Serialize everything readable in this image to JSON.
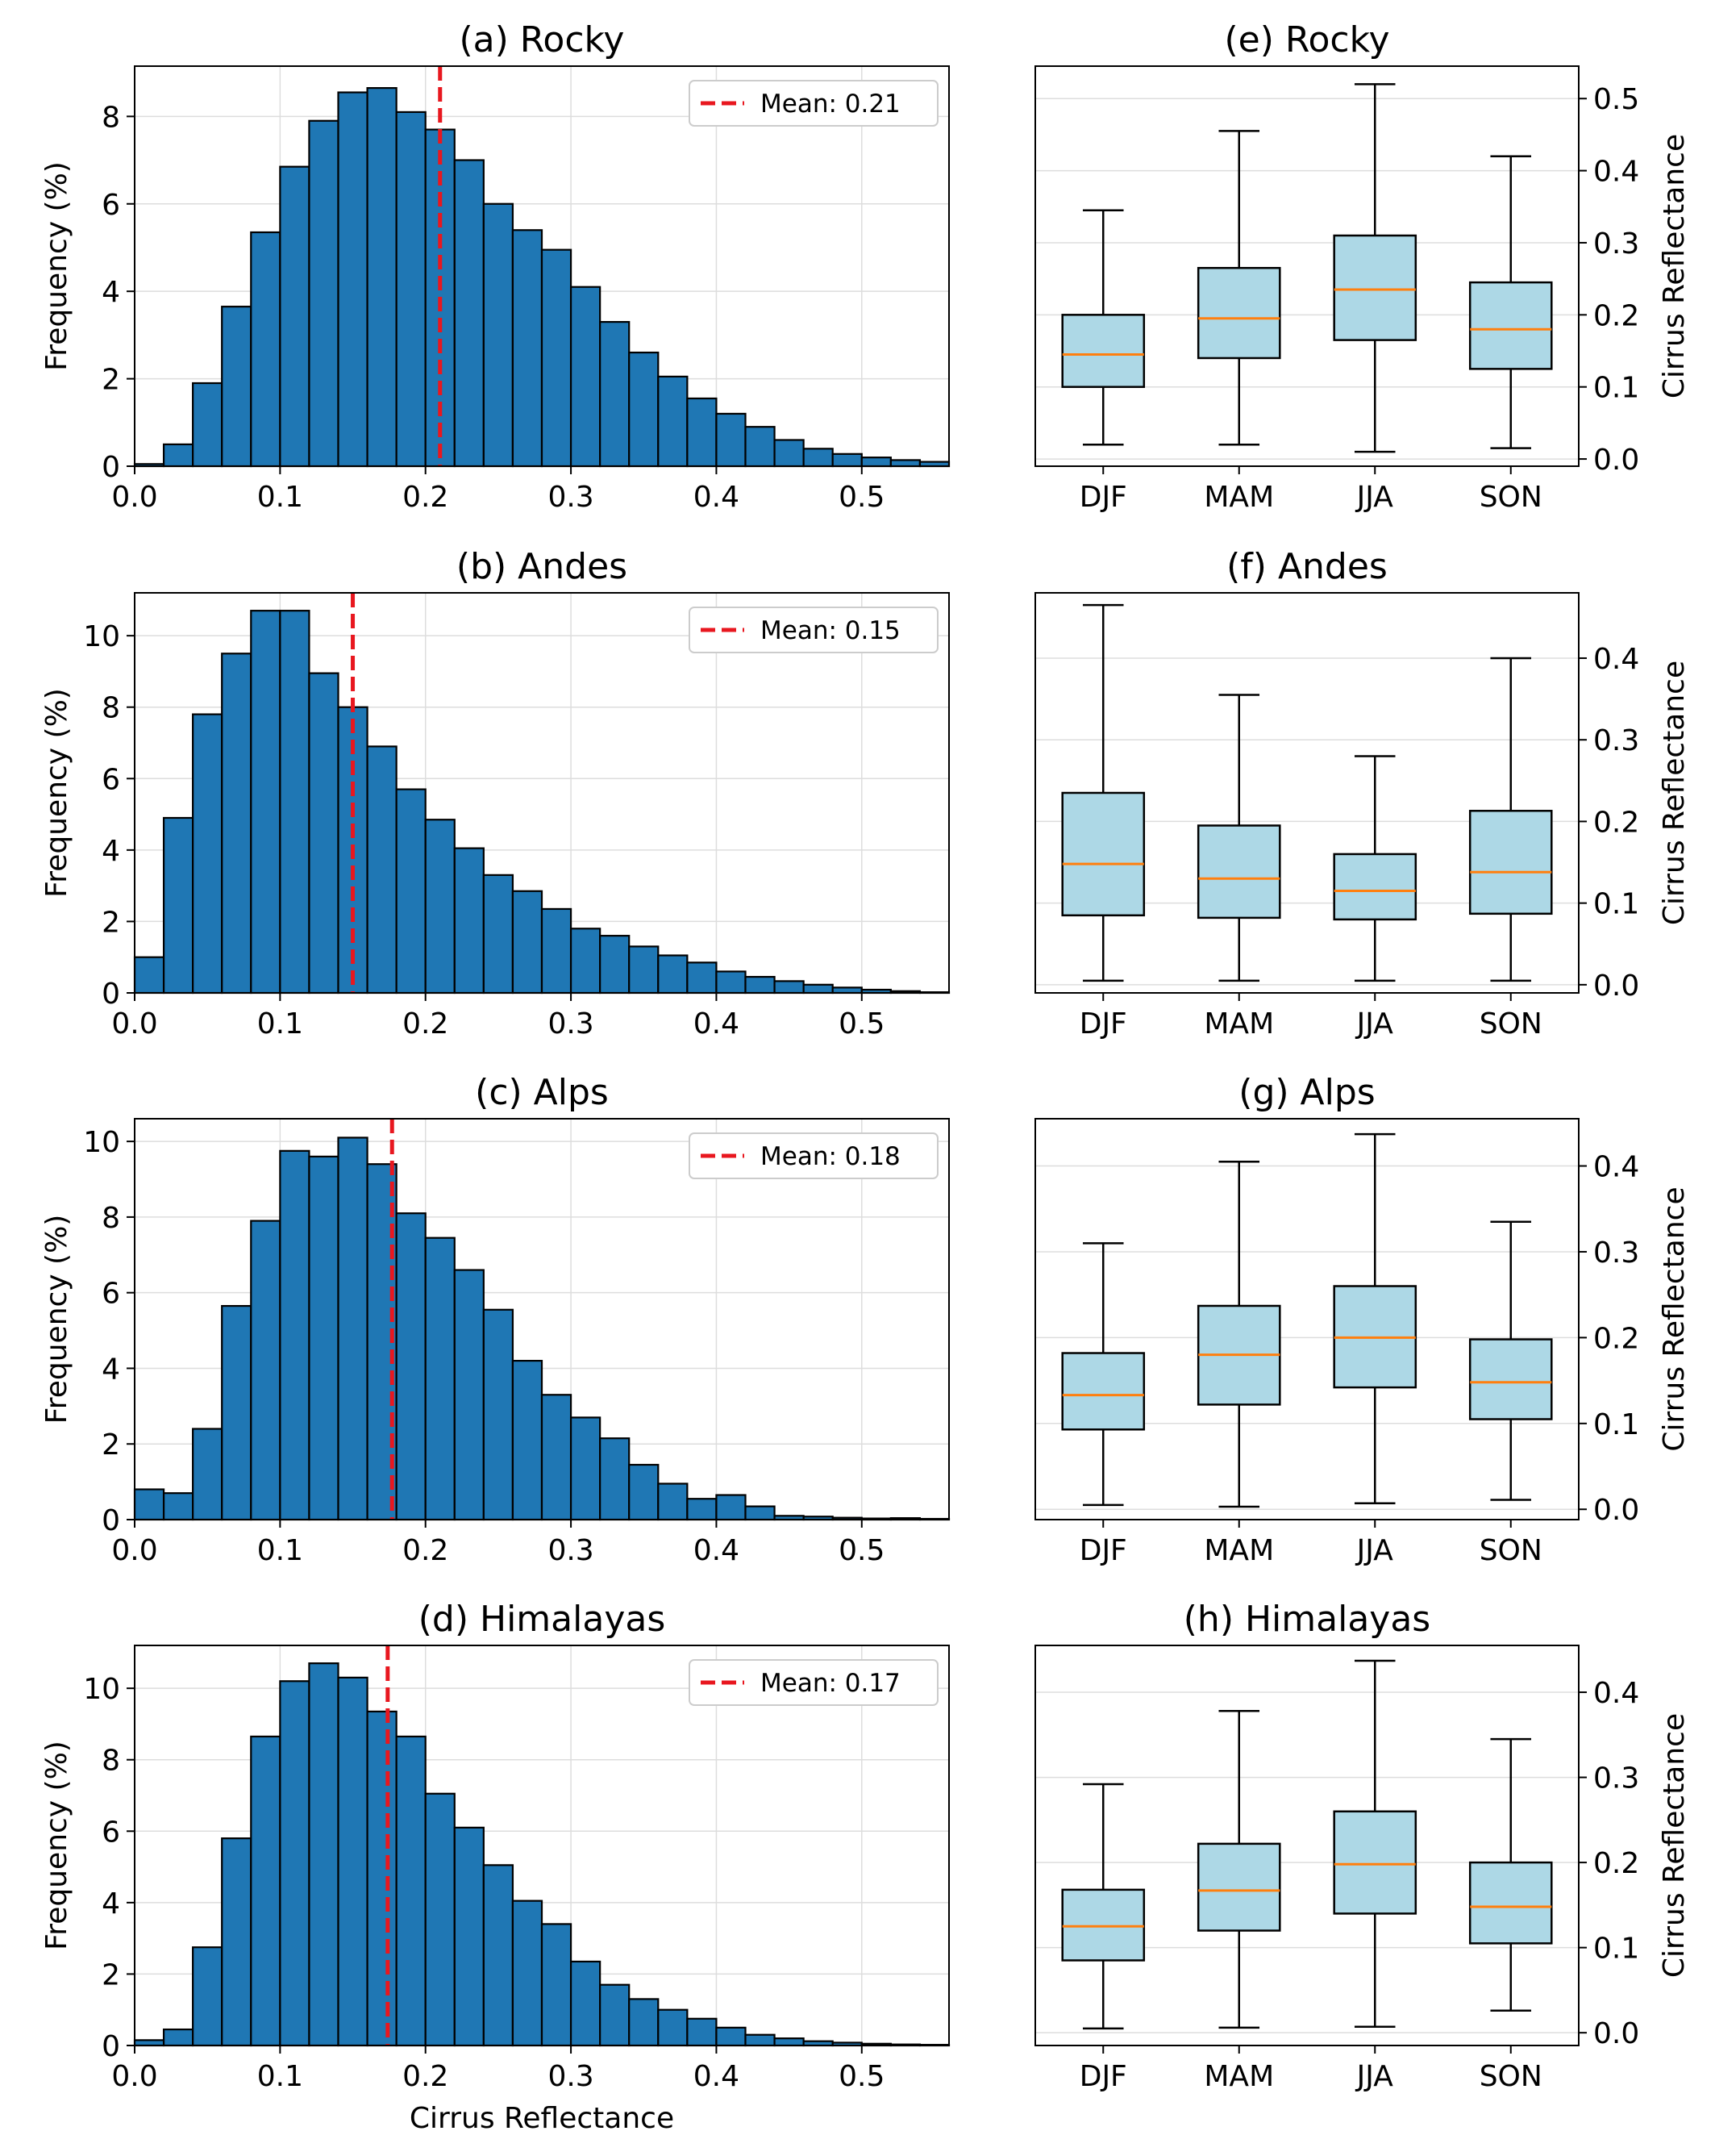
{
  "chart_data": [
    {
      "type": "bar",
      "title": "(a) Rocky",
      "xlabel": "",
      "ylabel": "Frequency (%)",
      "xlim": [
        0,
        0.56
      ],
      "ylim": [
        0,
        9.15
      ],
      "xticks": [
        "0.0",
        "0.1",
        "0.2",
        "0.3",
        "0.4",
        "0.5"
      ],
      "yticks": [
        "0",
        "2",
        "4",
        "6",
        "8"
      ],
      "bin_width": 0.02,
      "bin_start": 0,
      "values": [
        0.05,
        0.5,
        1.9,
        3.65,
        5.35,
        6.85,
        7.9,
        8.55,
        8.65,
        8.1,
        7.7,
        7.0,
        6.0,
        5.4,
        4.95,
        4.1,
        3.3,
        2.6,
        2.05,
        1.55,
        1.2,
        0.9,
        0.6,
        0.4,
        0.28,
        0.2,
        0.14,
        0.1
      ],
      "mean_value": 0.21,
      "legend_label": "Mean: 0.21",
      "colors": {
        "bars": "#1f77b4",
        "mean": "#e8171f"
      }
    },
    {
      "type": "bar",
      "title": "(b) Andes",
      "xlabel": "",
      "ylabel": "Frequency (%)",
      "xlim": [
        0,
        0.56
      ],
      "ylim": [
        0,
        11.2
      ],
      "xticks": [
        "0.0",
        "0.1",
        "0.2",
        "0.3",
        "0.4",
        "0.5"
      ],
      "yticks": [
        "0",
        "2",
        "4",
        "6",
        "8",
        "10"
      ],
      "bin_width": 0.02,
      "bin_start": 0,
      "values": [
        1.0,
        4.9,
        7.8,
        9.5,
        10.7,
        10.7,
        8.95,
        8.0,
        6.9,
        5.7,
        4.85,
        4.05,
        3.3,
        2.85,
        2.35,
        1.8,
        1.6,
        1.3,
        1.05,
        0.85,
        0.6,
        0.45,
        0.33,
        0.23,
        0.15,
        0.09,
        0.05,
        0.02
      ],
      "mean_value": 0.15,
      "legend_label": "Mean: 0.15",
      "colors": {
        "bars": "#1f77b4",
        "mean": "#e8171f"
      }
    },
    {
      "type": "bar",
      "title": "(c) Alps",
      "xlabel": "",
      "ylabel": "Frequency (%)",
      "xlim": [
        0,
        0.56
      ],
      "ylim": [
        0,
        10.6
      ],
      "xticks": [
        "0.0",
        "0.1",
        "0.2",
        "0.3",
        "0.4",
        "0.5"
      ],
      "yticks": [
        "0",
        "2",
        "4",
        "6",
        "8",
        "10"
      ],
      "bin_width": 0.02,
      "bin_start": 0,
      "values": [
        0.8,
        0.7,
        2.4,
        5.65,
        7.9,
        9.75,
        9.6,
        10.1,
        9.4,
        8.1,
        7.45,
        6.6,
        5.55,
        4.2,
        3.3,
        2.7,
        2.15,
        1.45,
        0.95,
        0.55,
        0.65,
        0.35,
        0.1,
        0.08,
        0.05,
        0.03,
        0.04,
        0.02
      ],
      "mean_value": 0.177,
      "legend_label": "Mean: 0.18",
      "colors": {
        "bars": "#1f77b4",
        "mean": "#e8171f"
      }
    },
    {
      "type": "bar",
      "title": "(d) Himalayas",
      "xlabel": "Cirrus Reflectance",
      "ylabel": "Frequency (%)",
      "xlim": [
        0,
        0.56
      ],
      "ylim": [
        0,
        11.2
      ],
      "xticks": [
        "0.0",
        "0.1",
        "0.2",
        "0.3",
        "0.4",
        "0.5"
      ],
      "yticks": [
        "0",
        "2",
        "4",
        "6",
        "8",
        "10"
      ],
      "bin_width": 0.02,
      "bin_start": 0,
      "values": [
        0.15,
        0.45,
        2.75,
        5.8,
        8.65,
        10.2,
        10.7,
        10.3,
        9.35,
        8.65,
        7.05,
        6.1,
        5.05,
        4.05,
        3.4,
        2.35,
        1.7,
        1.3,
        1.0,
        0.75,
        0.5,
        0.3,
        0.2,
        0.12,
        0.08,
        0.05,
        0.03,
        0.02
      ],
      "mean_value": 0.174,
      "legend_label": "Mean: 0.17",
      "colors": {
        "bars": "#1f77b4",
        "mean": "#e8171f"
      }
    },
    {
      "type": "box",
      "title": "(e) Rocky",
      "xlabel": "",
      "ylabel": "Cirrus Reflectance",
      "categories": [
        "DJF",
        "MAM",
        "JJA",
        "SON"
      ],
      "ylim": [
        -0.01,
        0.545
      ],
      "yticks": [
        "0.0",
        "0.1",
        "0.2",
        "0.3",
        "0.4",
        "0.5"
      ],
      "boxes": [
        {
          "whislo": 0.02,
          "q1": 0.1,
          "med": 0.145,
          "q3": 0.2,
          "whishi": 0.345
        },
        {
          "whislo": 0.02,
          "q1": 0.14,
          "med": 0.195,
          "q3": 0.265,
          "whishi": 0.455
        },
        {
          "whislo": 0.01,
          "q1": 0.165,
          "med": 0.235,
          "q3": 0.31,
          "whishi": 0.52
        },
        {
          "whislo": 0.015,
          "q1": 0.125,
          "med": 0.18,
          "q3": 0.245,
          "whishi": 0.42
        }
      ],
      "colors": {
        "box": "#add8e6",
        "median": "#ff7f0e"
      }
    },
    {
      "type": "box",
      "title": "(f) Andes",
      "xlabel": "",
      "ylabel": "Cirrus Reflectance",
      "categories": [
        "DJF",
        "MAM",
        "JJA",
        "SON"
      ],
      "ylim": [
        -0.01,
        0.48
      ],
      "yticks": [
        "0.0",
        "0.1",
        "0.2",
        "0.3",
        "0.4"
      ],
      "boxes": [
        {
          "whislo": 0.005,
          "q1": 0.085,
          "med": 0.148,
          "q3": 0.235,
          "whishi": 0.465
        },
        {
          "whislo": 0.005,
          "q1": 0.082,
          "med": 0.13,
          "q3": 0.195,
          "whishi": 0.355
        },
        {
          "whislo": 0.005,
          "q1": 0.08,
          "med": 0.115,
          "q3": 0.16,
          "whishi": 0.28
        },
        {
          "whislo": 0.005,
          "q1": 0.087,
          "med": 0.138,
          "q3": 0.213,
          "whishi": 0.4
        }
      ],
      "colors": {
        "box": "#add8e6",
        "median": "#ff7f0e"
      }
    },
    {
      "type": "box",
      "title": "(g) Alps",
      "xlabel": "",
      "ylabel": "Cirrus Reflectance",
      "categories": [
        "DJF",
        "MAM",
        "JJA",
        "SON"
      ],
      "ylim": [
        -0.012,
        0.455
      ],
      "yticks": [
        "0.0",
        "0.1",
        "0.2",
        "0.3",
        "0.4"
      ],
      "boxes": [
        {
          "whislo": 0.005,
          "q1": 0.093,
          "med": 0.133,
          "q3": 0.182,
          "whishi": 0.31
        },
        {
          "whislo": 0.003,
          "q1": 0.122,
          "med": 0.18,
          "q3": 0.237,
          "whishi": 0.405
        },
        {
          "whislo": 0.007,
          "q1": 0.142,
          "med": 0.2,
          "q3": 0.26,
          "whishi": 0.437
        },
        {
          "whislo": 0.011,
          "q1": 0.105,
          "med": 0.148,
          "q3": 0.198,
          "whishi": 0.335
        }
      ],
      "colors": {
        "box": "#add8e6",
        "median": "#ff7f0e"
      }
    },
    {
      "type": "box",
      "title": "(h) Himalayas",
      "xlabel": "",
      "ylabel": "Cirrus Reflectance",
      "categories": [
        "DJF",
        "MAM",
        "JJA",
        "SON"
      ],
      "ylim": [
        -0.015,
        0.455
      ],
      "yticks": [
        "0.0",
        "0.1",
        "0.2",
        "0.3",
        "0.4"
      ],
      "boxes": [
        {
          "whislo": 0.005,
          "q1": 0.085,
          "med": 0.125,
          "q3": 0.168,
          "whishi": 0.292
        },
        {
          "whislo": 0.006,
          "q1": 0.12,
          "med": 0.167,
          "q3": 0.222,
          "whishi": 0.378
        },
        {
          "whislo": 0.007,
          "q1": 0.14,
          "med": 0.198,
          "q3": 0.26,
          "whishi": 0.437
        },
        {
          "whislo": 0.026,
          "q1": 0.105,
          "med": 0.148,
          "q3": 0.2,
          "whishi": 0.345
        }
      ],
      "colors": {
        "box": "#add8e6",
        "median": "#ff7f0e"
      }
    }
  ]
}
